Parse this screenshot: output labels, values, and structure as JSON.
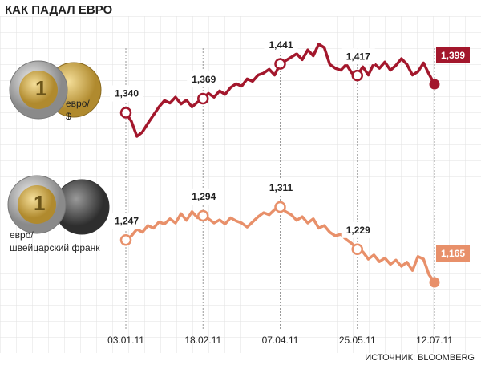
{
  "chart_data": {
    "type": "line",
    "title": "КАК ПАДАЛ ЕВРО",
    "categories": [
      "03.01.11",
      null,
      null,
      null,
      null,
      null,
      null,
      null,
      null,
      null,
      null,
      null,
      null,
      null,
      "18.02.11",
      null,
      null,
      null,
      null,
      null,
      null,
      null,
      null,
      null,
      null,
      null,
      null,
      null,
      "07.04.11",
      null,
      null,
      null,
      null,
      null,
      null,
      null,
      null,
      null,
      null,
      null,
      null,
      null,
      "25.05.11",
      null,
      null,
      null,
      null,
      null,
      null,
      null,
      null,
      null,
      null,
      null,
      null,
      null,
      "12.07.11"
    ],
    "series": [
      {
        "name": "евро/\n$",
        "color": "#a3172c",
        "values": [
          1.34,
          1.322,
          1.291,
          1.3,
          1.318,
          1.335,
          1.352,
          1.365,
          1.36,
          1.372,
          1.358,
          1.366,
          1.352,
          1.362,
          1.369,
          1.38,
          1.372,
          1.385,
          1.378,
          1.392,
          1.4,
          1.395,
          1.41,
          1.405,
          1.418,
          1.422,
          1.43,
          1.418,
          1.441,
          1.448,
          1.455,
          1.462,
          1.45,
          1.47,
          1.458,
          1.482,
          1.475,
          1.44,
          1.432,
          1.428,
          1.44,
          1.422,
          1.417,
          1.435,
          1.418,
          1.442,
          1.432,
          1.445,
          1.428,
          1.438,
          1.452,
          1.44,
          1.418,
          1.425,
          1.443,
          1.42,
          1.399
        ],
        "value_labels": [
          "1,340",
          null,
          null,
          null,
          null,
          null,
          null,
          null,
          null,
          null,
          null,
          null,
          null,
          null,
          "1,369",
          null,
          null,
          null,
          null,
          null,
          null,
          null,
          null,
          null,
          null,
          null,
          null,
          null,
          "1,441",
          null,
          null,
          null,
          null,
          null,
          null,
          null,
          null,
          null,
          null,
          null,
          null,
          null,
          "1,417",
          null,
          null,
          null,
          null,
          null,
          null,
          null,
          null,
          null,
          null,
          null,
          null,
          null,
          "1,399"
        ]
      },
      {
        "name": "евро/\nшвейцарский франк",
        "color": "#e8906a",
        "values": [
          1.247,
          1.255,
          1.268,
          1.262,
          1.275,
          1.27,
          1.282,
          1.278,
          1.288,
          1.28,
          1.298,
          1.285,
          1.302,
          1.29,
          1.294,
          1.288,
          1.28,
          1.286,
          1.278,
          1.29,
          1.284,
          1.28,
          1.272,
          1.282,
          1.292,
          1.3,
          1.296,
          1.306,
          1.311,
          1.302,
          1.296,
          1.285,
          1.292,
          1.28,
          1.288,
          1.27,
          1.275,
          1.262,
          1.255,
          1.258,
          1.248,
          1.24,
          1.229,
          1.224,
          1.21,
          1.218,
          1.205,
          1.212,
          1.2,
          1.208,
          1.196,
          1.204,
          1.188,
          1.215,
          1.21,
          1.18,
          1.165
        ],
        "value_labels": [
          "1,247",
          null,
          null,
          null,
          null,
          null,
          null,
          null,
          null,
          null,
          null,
          null,
          null,
          null,
          "1,294",
          null,
          null,
          null,
          null,
          null,
          null,
          null,
          null,
          null,
          null,
          null,
          null,
          null,
          "1,311",
          null,
          null,
          null,
          null,
          null,
          null,
          null,
          null,
          null,
          null,
          null,
          null,
          null,
          "1,229",
          null,
          null,
          null,
          null,
          null,
          null,
          null,
          null,
          null,
          null,
          null,
          null,
          null,
          "1,165"
        ]
      }
    ],
    "source": "ИСТОЧНИК: BLOOMBERG"
  }
}
